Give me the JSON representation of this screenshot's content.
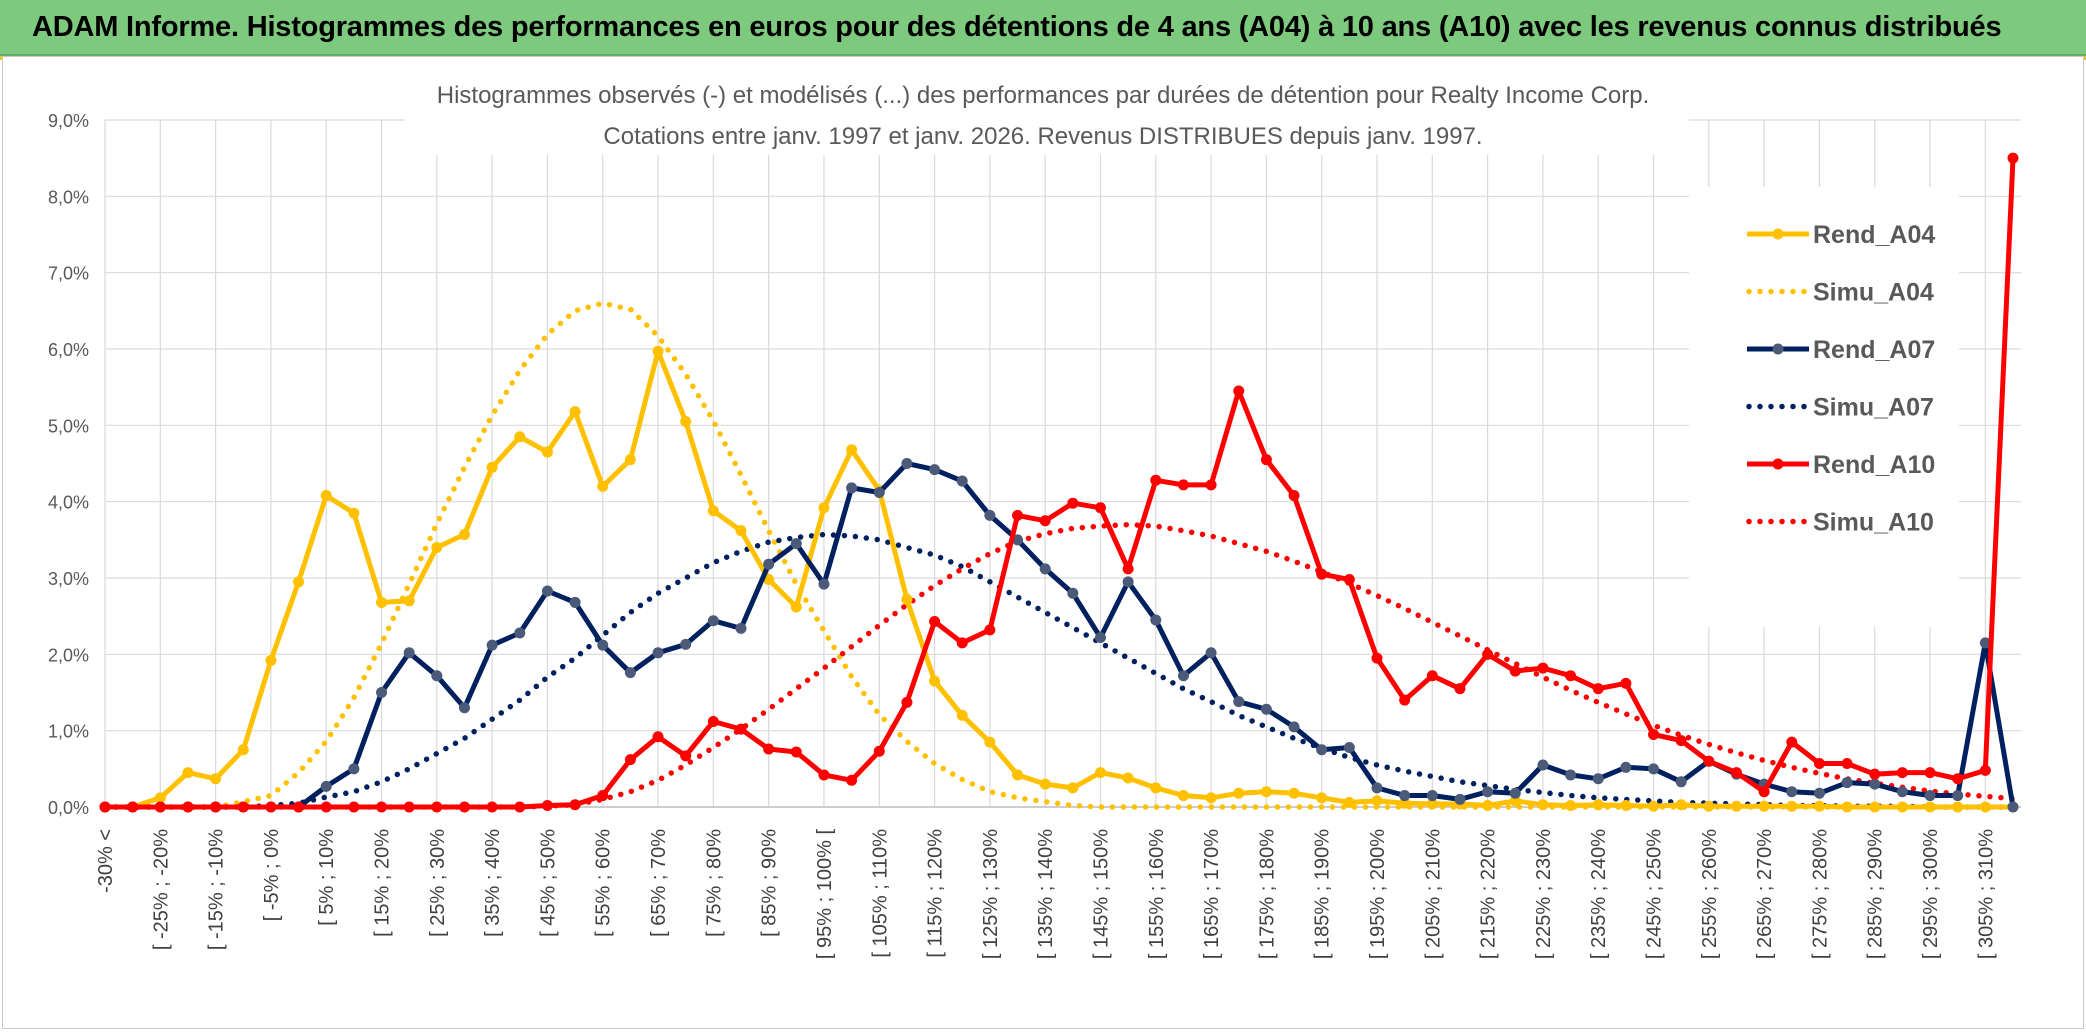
{
  "header": {
    "title": "ADAM Informe. Histogrammes des performances en euros pour des détentions de 4 ans (A04) à 10 ans (A10) avec les revenus connus distribués"
  },
  "colors": {
    "header_bg": "#7dc97d",
    "a04": "#FFC000",
    "a07": "#002060",
    "a10": "#FF0000",
    "a07_marker": "#4a5a78",
    "grid": "#d9d9d9"
  },
  "chart_data": {
    "type": "line",
    "title": "Histogrammes observés (-) et modélisés (...) des performances par durées de détention pour Realty Income Corp.",
    "subtitle": "Cotations entre janv. 1997 et janv. 2026. Revenus DISTRIBUES depuis janv. 1997.",
    "xlabel": "",
    "ylabel": "",
    "ylim": [
      0,
      9
    ],
    "y_ticks": [
      "0,0%",
      "1,0%",
      "2,0%",
      "3,0%",
      "4,0%",
      "5,0%",
      "6,0%",
      "7,0%",
      "8,0%",
      "9,0%"
    ],
    "x_tick_labels": [
      "-30% <",
      "[ -25% ; -20%",
      "[ -15% ; -10%",
      "[ -5% ; 0%",
      "[ 5% ; 10%",
      "[ 15% ; 20%",
      "[ 25% ; 30%",
      "[ 35% ; 40%",
      "[ 45% ; 50%",
      "[ 55% ; 60%",
      "[ 65% ; 70%",
      "[ 75% ; 80%",
      "[ 85% ; 90%",
      "[ 95% ; 100% [",
      "[ 105% ; 110%",
      "[ 115% ; 120%",
      "[ 125% ; 130%",
      "[ 135% ; 140%",
      "[ 145% ; 150%",
      "[ 155% ; 160%",
      "[ 165% ; 170%",
      "[ 175% ; 180%",
      "[ 185% ; 190%",
      "[ 195% ; 200%",
      "[ 205% ; 210%",
      "[ 215% ; 220%",
      "[ 225% ; 230%",
      "[ 235% ; 240%",
      "[ 245% ; 250%",
      "[ 255% ; 260%",
      "[ 265% ; 270%",
      "[ 275% ; 280%",
      "[ 285% ; 290%",
      "[ 295% ; 300%",
      "[ 305% ; 310%"
    ],
    "n_categories": 70,
    "legend_position": "right",
    "series": [
      {
        "name": "Rend_A04",
        "style": "solid-marker",
        "color": "#FFC000",
        "values": [
          0,
          0,
          0.12,
          0.45,
          0.37,
          0.75,
          1.92,
          2.95,
          4.08,
          3.85,
          2.68,
          2.7,
          3.4,
          3.57,
          4.45,
          4.85,
          4.65,
          5.18,
          4.2,
          4.55,
          5.97,
          5.05,
          3.88,
          3.62,
          2.98,
          2.62,
          3.92,
          4.68,
          4.15,
          2.72,
          1.65,
          1.2,
          0.85,
          0.42,
          0.3,
          0.25,
          0.45,
          0.38,
          0.25,
          0.15,
          0.12,
          0.18,
          0.2,
          0.18,
          0.12,
          0.06,
          0.08,
          0.05,
          0.04,
          0.04,
          0.02,
          0.08,
          0.03,
          0.02,
          0.03,
          0.02,
          0.01,
          0.03,
          0.01,
          0.01,
          0.01,
          0.01,
          0.01,
          0,
          0,
          0,
          0,
          0,
          0,
          0
        ]
      },
      {
        "name": "Simu_A04",
        "style": "dotted",
        "color": "#FFC000",
        "values": [
          0,
          0,
          0,
          0,
          0,
          0.07,
          0.15,
          0.45,
          0.86,
          1.43,
          2.14,
          2.92,
          3.71,
          4.45,
          5.13,
          5.72,
          6.19,
          6.5,
          6.6,
          6.52,
          6.17,
          5.67,
          5.06,
          4.35,
          3.62,
          2.92,
          2.31,
          1.71,
          1.21,
          0.86,
          0.57,
          0.36,
          0.2,
          0.12,
          0.07,
          0.02,
          0,
          0,
          0,
          0,
          0,
          0,
          0,
          0,
          0,
          0,
          0,
          0,
          0,
          0,
          0,
          0,
          0,
          0,
          0,
          0,
          0,
          0,
          0,
          0,
          0,
          0,
          0,
          0,
          0,
          0,
          0,
          0,
          0,
          0
        ]
      },
      {
        "name": "Rend_A07",
        "style": "solid-marker",
        "color": "#002060",
        "values": [
          0,
          0,
          0,
          0,
          0,
          0,
          0,
          0,
          0.27,
          0.5,
          1.5,
          2.02,
          1.72,
          1.3,
          2.12,
          2.28,
          2.83,
          2.68,
          2.12,
          1.76,
          2.02,
          2.13,
          2.44,
          2.34,
          3.18,
          3.45,
          2.92,
          4.18,
          4.12,
          4.5,
          4.42,
          4.27,
          3.82,
          3.5,
          3.12,
          2.8,
          2.22,
          2.95,
          2.45,
          1.72,
          2.02,
          1.38,
          1.28,
          1.05,
          0.75,
          0.78,
          0.25,
          0.15,
          0.15,
          0.1,
          0.2,
          0.18,
          0.55,
          0.42,
          0.37,
          0.52,
          0.5,
          0.33,
          0.6,
          0.43,
          0.3,
          0.2,
          0.18,
          0.32,
          0.3,
          0.2,
          0.15,
          0.15,
          2.15,
          0
        ]
      },
      {
        "name": "Simu_A07",
        "style": "dotted",
        "color": "#002060",
        "values": [
          0,
          0,
          0,
          0,
          0,
          0,
          0.02,
          0.05,
          0.13,
          0.2,
          0.33,
          0.5,
          0.7,
          0.9,
          1.15,
          1.4,
          1.7,
          1.95,
          2.25,
          2.55,
          2.8,
          3.0,
          3.2,
          3.35,
          3.47,
          3.53,
          3.57,
          3.55,
          3.5,
          3.4,
          3.3,
          3.15,
          2.95,
          2.75,
          2.55,
          2.35,
          2.15,
          1.95,
          1.75,
          1.55,
          1.38,
          1.2,
          1.05,
          0.9,
          0.77,
          0.65,
          0.55,
          0.47,
          0.4,
          0.33,
          0.28,
          0.23,
          0.19,
          0.15,
          0.12,
          0.1,
          0.08,
          0.06,
          0.05,
          0.04,
          0.03,
          0.02,
          0.02,
          0.01,
          0.01,
          0.01,
          0,
          0,
          0,
          0
        ]
      },
      {
        "name": "Rend_A10",
        "style": "solid-marker",
        "color": "#FF0000",
        "values": [
          0,
          0,
          0,
          0,
          0,
          0,
          0,
          0,
          0,
          0,
          0,
          0,
          0,
          0,
          0,
          0,
          0.02,
          0.03,
          0.15,
          0.62,
          0.92,
          0.67,
          1.12,
          1.02,
          0.76,
          0.72,
          0.42,
          0.35,
          0.73,
          1.37,
          2.43,
          2.15,
          2.32,
          3.82,
          3.75,
          3.98,
          3.92,
          3.12,
          4.28,
          4.22,
          4.22,
          5.45,
          4.55,
          4.08,
          3.05,
          2.98,
          1.95,
          1.4,
          1.72,
          1.55,
          2.0,
          1.78,
          1.82,
          1.72,
          1.55,
          1.62,
          0.95,
          0.87,
          0.6,
          0.45,
          0.2,
          0.85,
          0.57,
          0.57,
          0.43,
          0.45,
          0.45,
          0.37,
          0.48,
          8.5
        ]
      },
      {
        "name": "Simu_A10",
        "style": "dotted",
        "color": "#FF0000",
        "values": [
          0,
          0,
          0,
          0,
          0,
          0,
          0,
          0,
          0,
          0,
          0,
          0,
          0,
          0,
          0,
          0,
          0.01,
          0.03,
          0.1,
          0.2,
          0.35,
          0.55,
          0.78,
          1.02,
          1.28,
          1.55,
          1.82,
          2.1,
          2.38,
          2.65,
          2.9,
          3.12,
          3.32,
          3.48,
          3.58,
          3.65,
          3.68,
          3.7,
          3.68,
          3.62,
          3.55,
          3.45,
          3.35,
          3.22,
          3.08,
          2.93,
          2.77,
          2.6,
          2.42,
          2.24,
          2.06,
          1.88,
          1.7,
          1.53,
          1.37,
          1.22,
          1.07,
          0.94,
          0.82,
          0.71,
          0.61,
          0.52,
          0.44,
          0.37,
          0.31,
          0.26,
          0.21,
          0.17,
          0.14,
          0.11
        ]
      }
    ]
  }
}
